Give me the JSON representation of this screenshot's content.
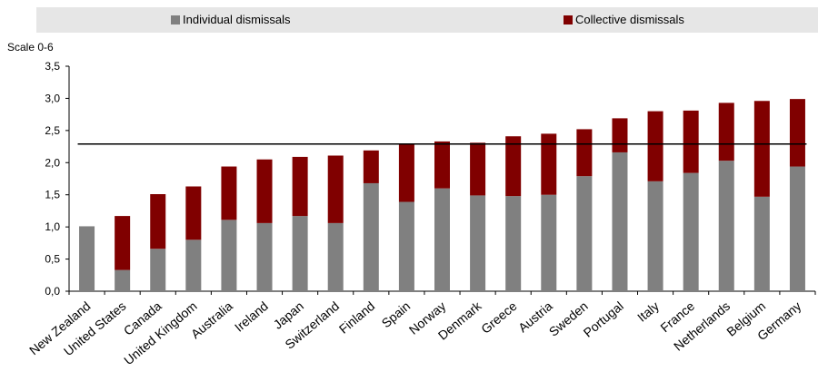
{
  "chart_data": {
    "type": "bar",
    "stacked": true,
    "ylabel": "Scale 0-6",
    "ylim": [
      0,
      3.5
    ],
    "yticks": [
      "0,0",
      "0,5",
      "1,0",
      "1,5",
      "2,0",
      "2,5",
      "3,0",
      "3,5"
    ],
    "categories": [
      "New Zealand",
      "United States",
      "Canada",
      "United Kingdom",
      "Australia",
      "Ireland",
      "Japan",
      "Switzerland",
      "Finland",
      "Spain",
      "Norway",
      "Denmark",
      "Greece",
      "Austria",
      "Sweden",
      "Portugal",
      "Italy",
      "France",
      "Netherlands",
      "Belgium",
      "Germany"
    ],
    "series": [
      {
        "name": "Individual dismissals",
        "color": "#808080",
        "values": [
          1.01,
          0.33,
          0.66,
          0.8,
          1.11,
          1.06,
          1.17,
          1.06,
          1.68,
          1.39,
          1.6,
          1.49,
          1.48,
          1.5,
          1.79,
          2.16,
          1.71,
          1.84,
          2.03,
          1.47,
          1.94
        ]
      },
      {
        "name": "Collective dismissals",
        "color": "#800000",
        "values": [
          0.0,
          0.84,
          0.85,
          0.83,
          0.83,
          0.99,
          0.92,
          1.05,
          0.51,
          0.91,
          0.73,
          0.82,
          0.93,
          0.95,
          0.73,
          0.53,
          1.09,
          0.97,
          0.9,
          1.49,
          1.05
        ]
      }
    ],
    "reference_line": {
      "value": 2.29,
      "color": "#000000"
    },
    "legend_placement": "top",
    "grid": false
  }
}
